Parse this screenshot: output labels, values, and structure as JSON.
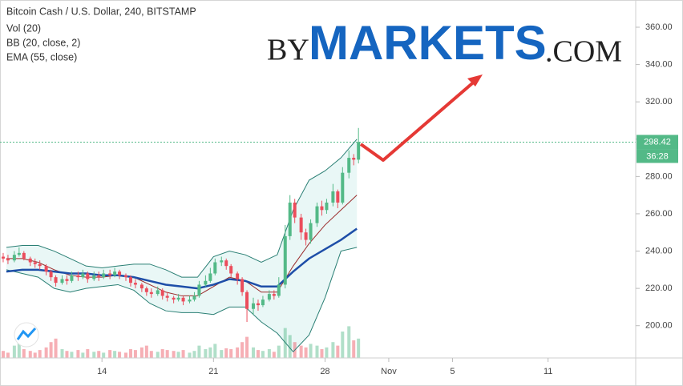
{
  "chart_data": {
    "type": "candlestick",
    "title": "Bitcoin Cash / U.S. Dollar, 240, BITSTAMP",
    "legend": [
      "Vol (20)",
      "BB (20, close, 2)",
      "EMA (55, close)"
    ],
    "watermark": {
      "prefix": "BY",
      "main": "MARKETS",
      "suffix": ".COM"
    },
    "xlim": [
      7.6,
      47.5
    ],
    "xticks": [
      14,
      21,
      28,
      {
        "value": 32,
        "label": "Nov"
      },
      {
        "value": 36,
        "label": "5"
      },
      {
        "value": 42,
        "label": "11"
      }
    ],
    "ylim": [
      182.7,
      374.6
    ],
    "yticks": [
      {
        "value": 200,
        "label": "200.00"
      },
      {
        "value": 220,
        "label": "220.00"
      },
      {
        "value": 240,
        "label": "240.00"
      },
      {
        "value": 260,
        "label": "260.00"
      },
      {
        "value": 280,
        "label": "280.00"
      },
      {
        "value": 300,
        "label": "300.00"
      },
      {
        "value": 320,
        "label": "320.00"
      },
      {
        "value": 340,
        "label": "340.00"
      },
      {
        "value": 360,
        "label": "360.00"
      }
    ],
    "grid": false,
    "up_color": "#53b987",
    "down_color": "#eb4d5c",
    "volume_ylim": [
      0,
      100
    ],
    "last_price": 298.42,
    "countdown": "36:28",
    "candles": {
      "x": [
        7.8,
        8.1,
        8.5,
        8.8,
        9.1,
        9.5,
        9.8,
        10.1,
        10.5,
        10.8,
        11.1,
        11.5,
        11.8,
        12.1,
        12.5,
        12.8,
        13.1,
        13.5,
        13.8,
        14.1,
        14.5,
        14.8,
        15.1,
        15.5,
        15.8,
        16.1,
        16.5,
        16.8,
        17.1,
        17.5,
        17.8,
        18.1,
        18.5,
        18.8,
        19.1,
        19.5,
        19.8,
        20.1,
        20.5,
        20.8,
        21.1,
        21.5,
        21.8,
        22.1,
        22.5,
        22.8,
        23.1,
        23.5,
        23.8,
        24.1,
        24.5,
        24.8,
        25.1,
        25.5,
        25.8,
        26.1,
        26.5,
        26.8,
        27.1,
        27.5,
        27.8,
        28.1,
        28.5,
        28.8,
        29.1,
        29.5,
        29.8,
        30.1
      ],
      "open": [
        237,
        236,
        235,
        238,
        239,
        236,
        234,
        233,
        232,
        229,
        226,
        223,
        225,
        224,
        227,
        226,
        228,
        225,
        227,
        226,
        228,
        227,
        229,
        227,
        226,
        223,
        222,
        220,
        218,
        217,
        219,
        216,
        215,
        214,
        215,
        213,
        214,
        216,
        222,
        224,
        228,
        234,
        235,
        232,
        228,
        225,
        218,
        209,
        212,
        211,
        214,
        217,
        216,
        222,
        248,
        266,
        258,
        250,
        246,
        255,
        264,
        262,
        266,
        272,
        266,
        282,
        290,
        289
      ],
      "high": [
        239,
        238,
        240,
        242,
        240,
        237,
        236,
        235,
        233,
        230,
        227,
        227,
        227,
        229,
        229,
        230,
        229,
        229,
        229,
        230,
        230,
        231,
        230,
        228,
        227,
        225,
        223,
        221,
        220,
        221,
        220,
        218,
        216,
        217,
        216,
        216,
        218,
        224,
        227,
        231,
        236,
        237,
        236,
        233,
        229,
        226,
        219,
        215,
        214,
        216,
        219,
        219,
        226,
        254,
        270,
        268,
        260,
        252,
        257,
        266,
        267,
        268,
        276,
        273,
        285,
        294,
        292,
        306
      ],
      "low": [
        234,
        233,
        234,
        237,
        235,
        232,
        231,
        230,
        227,
        224,
        221,
        222,
        222,
        223,
        224,
        225,
        223,
        224,
        224,
        225,
        225,
        226,
        225,
        224,
        221,
        220,
        218,
        216,
        215,
        216,
        214,
        213,
        212,
        213,
        211,
        212,
        213,
        215,
        221,
        223,
        227,
        232,
        230,
        226,
        222,
        216,
        202,
        206,
        208,
        210,
        213,
        214,
        215,
        220,
        246,
        255,
        246,
        243,
        244,
        253,
        259,
        260,
        264,
        263,
        265,
        279,
        286,
        287
      ],
      "close": [
        236,
        235,
        238,
        239,
        236,
        234,
        233,
        232,
        229,
        226,
        223,
        225,
        224,
        227,
        226,
        228,
        225,
        227,
        226,
        228,
        227,
        229,
        227,
        226,
        223,
        222,
        220,
        218,
        217,
        219,
        216,
        215,
        214,
        215,
        213,
        214,
        216,
        222,
        224,
        228,
        234,
        235,
        232,
        228,
        225,
        218,
        209,
        212,
        211,
        214,
        217,
        216,
        222,
        248,
        266,
        258,
        250,
        246,
        255,
        264,
        262,
        266,
        272,
        266,
        282,
        290,
        289,
        298.42
      ],
      "volume": [
        8,
        6,
        14,
        20,
        10,
        8,
        6,
        9,
        12,
        18,
        22,
        10,
        8,
        7,
        9,
        6,
        10,
        7,
        8,
        6,
        9,
        8,
        7,
        6,
        10,
        9,
        12,
        14,
        8,
        7,
        10,
        9,
        8,
        7,
        9,
        6,
        8,
        14,
        10,
        12,
        16,
        9,
        11,
        10,
        12,
        18,
        24,
        12,
        9,
        8,
        10,
        7,
        14,
        34,
        26,
        18,
        14,
        12,
        16,
        14,
        10,
        12,
        18,
        14,
        30,
        36,
        20,
        22
      ]
    },
    "indicator_x": [
      8,
      9,
      10,
      11,
      12,
      13,
      14,
      15,
      16,
      17,
      18,
      19,
      20,
      21,
      22,
      23,
      24,
      25,
      26,
      27,
      28,
      29,
      30
    ],
    "ema": {
      "color": "#1e4ea8",
      "values": [
        229,
        230,
        230,
        229,
        228,
        228,
        227,
        227,
        226,
        224,
        222,
        221,
        220,
        222,
        225,
        224,
        221,
        221,
        229,
        236,
        241,
        246,
        252
      ]
    },
    "bb": {
      "color": "#2a7f74",
      "basis_color": "#9b2b2b",
      "fill": "#dff3f2",
      "basis": [
        236,
        236,
        234,
        230,
        227,
        226,
        226,
        227,
        226,
        222,
        218,
        216,
        216,
        221,
        226,
        224,
        218,
        218,
        232,
        244,
        254,
        262,
        270
      ],
      "upper": [
        242,
        243,
        243,
        240,
        236,
        232,
        231,
        232,
        233,
        233,
        230,
        226,
        226,
        237,
        240,
        238,
        234,
        238,
        262,
        278,
        283,
        290,
        300
      ],
      "lower": [
        230,
        228,
        226,
        220,
        218,
        220,
        221,
        222,
        219,
        212,
        208,
        207,
        207,
        206,
        210,
        210,
        202,
        196,
        186,
        195,
        215,
        240,
        242
      ]
    }
  }
}
